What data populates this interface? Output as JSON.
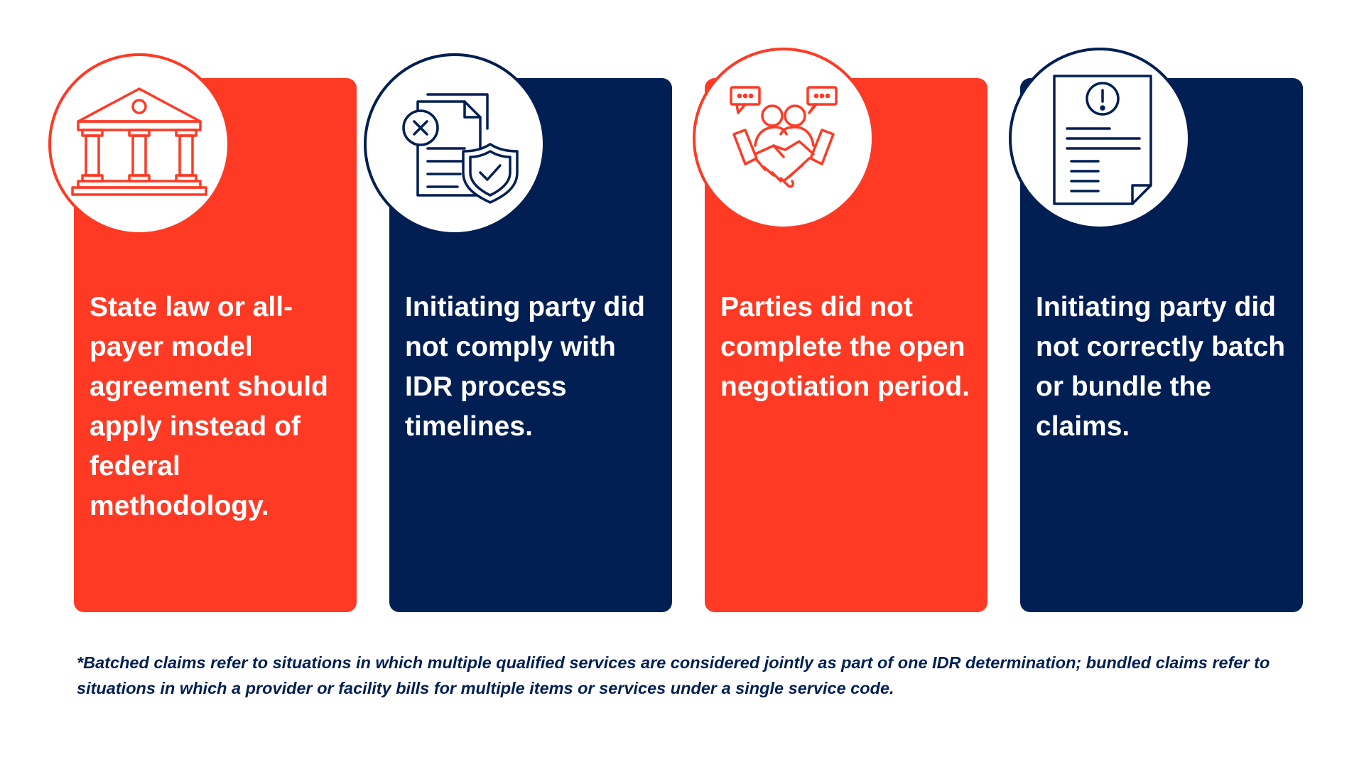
{
  "cards": [
    {
      "text": "State law or all-payer model agreement should apply instead of federal methodology.",
      "color": "#fe3a25",
      "icon": "courthouse-icon"
    },
    {
      "text": "Initiating party did not comply with IDR process timelines.",
      "color": "#011f53",
      "icon": "document-shield-icon"
    },
    {
      "text": "Parties did not complete the open negotiation period.",
      "color": "#fe3a25",
      "icon": "handshake-negotiation-icon"
    },
    {
      "text": "Initiating party did not correctly batch or bundle the claims.",
      "color": "#011f53",
      "icon": "document-alert-icon"
    }
  ],
  "footnote": "*Batched claims refer to situations in which multiple qualified services are considered jointly as part of one IDR determination; bundled claims refer to situations in which a provider or facility bills for multiple items or services under a single service code.",
  "colors": {
    "red": "#fe3a25",
    "navy": "#011f53",
    "background": "#ffffff"
  }
}
